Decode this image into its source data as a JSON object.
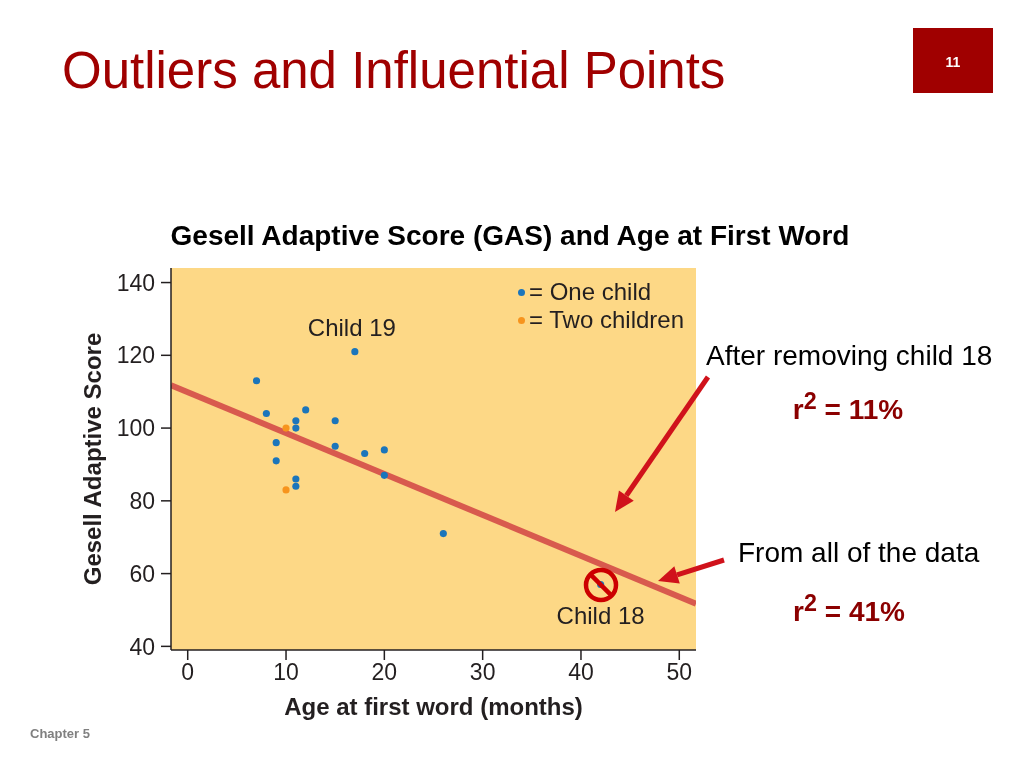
{
  "chart_data": {
    "type": "scatter",
    "title": "Outliers and Influential Points",
    "subtitle": "Gesell Adaptive Score (GAS) and Age at First Word",
    "xlabel": "Age at first word (months)",
    "ylabel": "Gesell Adaptive Score",
    "series": [
      {
        "name": "= One child",
        "color": "#1b75bb",
        "x": [
          15,
          26,
          9,
          15,
          20,
          18,
          11,
          8,
          20,
          7,
          9,
          11,
          11,
          12,
          42,
          17,
          11
        ],
        "values": [
          95,
          71,
          91,
          102,
          87,
          93,
          100,
          104,
          94,
          113,
          96,
          84,
          102,
          105,
          57,
          121,
          86
        ]
      },
      {
        "name": "= Two children",
        "color": "#f7941d",
        "x": [
          10,
          10
        ],
        "values": [
          83,
          100
        ]
      },
      {
        "type": "line",
        "color": "#d85a4e",
        "marker": "none",
        "x": [
          -1.7,
          51.7
        ],
        "values": [
          111.8,
          51.7
        ]
      }
    ],
    "xlim": [
      -1.7,
      51.7
    ],
    "xticks": [
      0,
      10,
      20,
      30,
      40,
      50
    ],
    "ylim": [
      39,
      144
    ],
    "yticks": [
      40,
      60,
      80,
      100,
      120,
      140
    ],
    "legend": "top right",
    "marker": "circle",
    "annotations": [
      {
        "text": "Child 19",
        "x": 17,
        "y": 121
      },
      {
        "text": "Child 18",
        "x": 42,
        "y": 57
      },
      "After removing child 18",
      "r$^{2}$ = 11%",
      "From all of the data",
      "r$^{2}$ = 41%",
      "11",
      "Chapter 5"
    ]
  }
}
